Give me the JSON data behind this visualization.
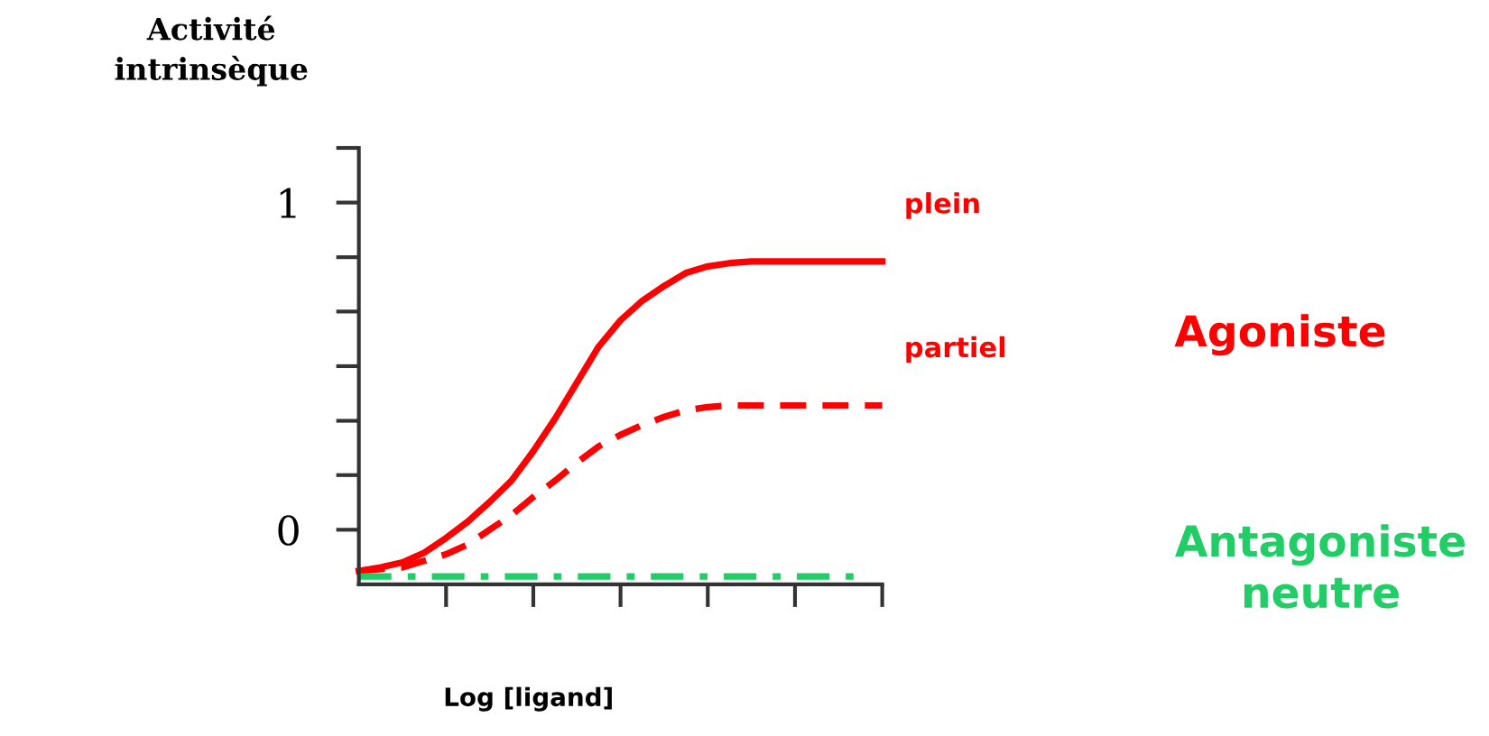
{
  "chart_data": {
    "type": "line",
    "ylabel": "Activité\nintrinsèque",
    "xlabel": "Log [ligand]",
    "categories": [
      null,
      null,
      null,
      null,
      null,
      null,
      null,
      null,
      null,
      null,
      null,
      null,
      null,
      null,
      null,
      null,
      null,
      null,
      null,
      null,
      null,
      null,
      null,
      null,
      null
    ],
    "ylim": [
      -0.167,
      1.167
    ],
    "yticks": [
      {
        "value": 0,
        "label": "0"
      },
      {
        "value": 0.167,
        "label": null
      },
      {
        "value": 0.333,
        "label": null
      },
      {
        "value": 0.5,
        "label": null
      },
      {
        "value": 0.667,
        "label": null
      },
      {
        "value": 0.833,
        "label": null
      },
      {
        "value": 1,
        "label": "1"
      },
      {
        "value": 1.167,
        "label": null
      }
    ],
    "grid": false,
    "legend": false,
    "series": [
      {
        "name": "plein",
        "color": "#ff0000",
        "line_style": "solid",
        "values": [
          -0.126,
          -0.115,
          -0.1,
          -0.07,
          -0.025,
          0.025,
          0.085,
          0.15,
          0.24,
          0.34,
          0.45,
          0.56,
          0.64,
          0.7,
          0.745,
          0.785,
          0.805,
          0.815,
          0.82,
          0.82,
          0.82,
          0.82,
          0.82,
          0.82,
          0.82
        ]
      },
      {
        "name": "partiel",
        "color": "#ff0000",
        "line_style": "dashed",
        "values": [
          -0.126,
          -0.12,
          -0.115,
          -0.095,
          -0.075,
          -0.045,
          0.0,
          0.045,
          0.1,
          0.15,
          0.205,
          0.255,
          0.29,
          0.32,
          0.345,
          0.365,
          0.375,
          0.38,
          0.38,
          0.38,
          0.38,
          0.38,
          0.38,
          0.38,
          0.38
        ]
      },
      {
        "color": "#22cc66",
        "line_style": "dashdot",
        "values": [
          -0.143,
          -0.143,
          -0.143,
          -0.143,
          -0.143,
          -0.143,
          -0.143,
          -0.143,
          -0.143,
          -0.143,
          -0.143,
          -0.143,
          -0.143,
          -0.143,
          -0.143,
          -0.143,
          -0.143,
          -0.143,
          -0.143,
          -0.143,
          -0.143,
          -0.143,
          -0.143,
          -0.143,
          null
        ]
      }
    ],
    "annotations": [
      "Agoniste",
      "Antagoniste\nneutre"
    ]
  }
}
